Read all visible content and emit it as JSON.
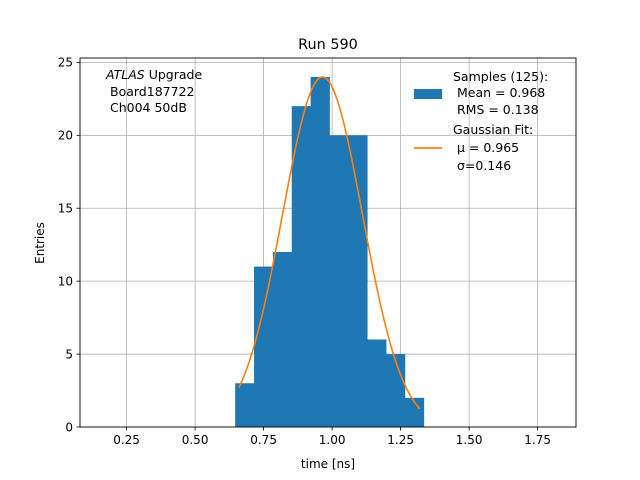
{
  "chart_data": {
    "type": "bar",
    "title": "Run 590",
    "xlabel": "time [ns]",
    "ylabel": "Entries",
    "xlim": [
      0.08,
      1.89
    ],
    "ylim": [
      0,
      25.3
    ],
    "xticks": [
      0.25,
      0.5,
      0.75,
      1.0,
      1.25,
      1.5,
      1.75
    ],
    "xtick_labels": [
      "0.25",
      "0.50",
      "0.75",
      "1.00",
      "1.25",
      "1.50",
      "1.75"
    ],
    "yticks": [
      0,
      5,
      10,
      15,
      20,
      25
    ],
    "ytick_labels": [
      "0",
      "5",
      "10",
      "15",
      "20",
      "25"
    ],
    "grid": true,
    "annotation": {
      "line1_italic": "ATLAS",
      "line1_rest": " Upgrade",
      "line2": "Board187722",
      "line3": "Ch004 50dB"
    },
    "histogram": {
      "name": "Samples (125):",
      "color": "#1f77b4",
      "bin_edges": [
        0.6463,
        0.7151,
        0.7839,
        0.8527,
        0.9215,
        0.9903,
        1.0591,
        1.1279,
        1.1967,
        1.2655,
        1.3343
      ],
      "counts": [
        3,
        11,
        12,
        22,
        24,
        20,
        20,
        6,
        5,
        2
      ]
    },
    "gaussian_fit": {
      "name": "Gaussian Fit:",
      "color": "#ff7f0e",
      "amplitude": 24.0,
      "mu": 0.965,
      "sigma": 0.146,
      "x_range": [
        0.66,
        1.32
      ]
    },
    "legend": {
      "position": "top-right",
      "samples_lines": [
        "Samples (125):",
        " Mean = 0.968",
        " RMS = 0.138"
      ],
      "fit_lines": [
        "Gaussian Fit:",
        " μ = 0.965",
        " σ=0.146"
      ]
    }
  }
}
